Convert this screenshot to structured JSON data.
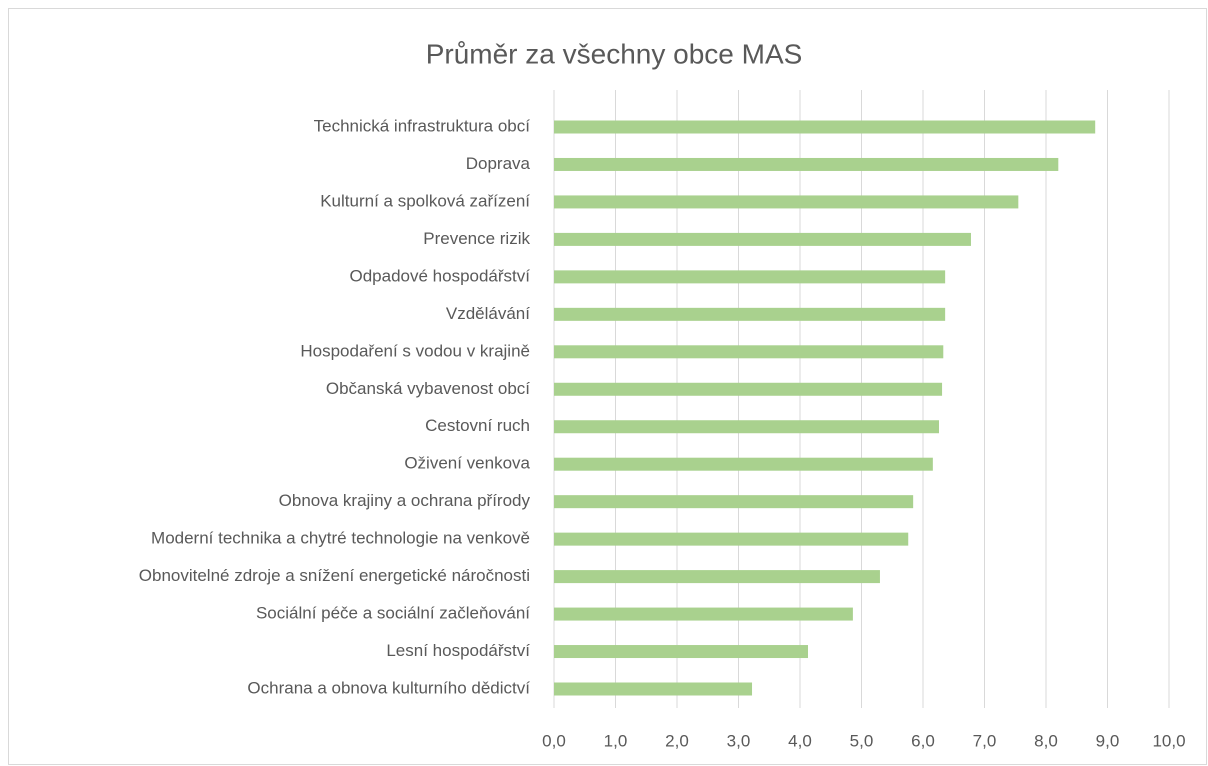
{
  "chart_data": {
    "type": "bar",
    "orientation": "horizontal",
    "title": "Průměr za všechny obce MAS",
    "categories": [
      "Technická infrastruktura obcí",
      "Doprava",
      "Kulturní a spolková zařízení",
      "Prevence rizik",
      "Odpadové hospodářství",
      "Vzdělávání",
      "Hospodaření s vodou v krajině",
      "Občanská vybavenost obcí",
      "Cestovní ruch",
      "Oživení venkova",
      "Obnova krajiny a ochrana přírody",
      "Moderní technika a chytré technologie na venkově",
      "Obnovitelné zdroje a snížení energetické náročnosti",
      "Sociální péče a sociální začleňování",
      "Lesní hospodářství",
      "Ochrana a obnova kulturního dědictví"
    ],
    "values": [
      8.8,
      8.2,
      7.55,
      6.78,
      6.36,
      6.36,
      6.33,
      6.31,
      6.26,
      6.16,
      5.84,
      5.76,
      5.3,
      4.86,
      4.13,
      3.22
    ],
    "color": "#a9d18e",
    "xlim": [
      0,
      10
    ],
    "xticks": [
      {
        "value": 0,
        "label": "0,0"
      },
      {
        "value": 1,
        "label": "1,0"
      },
      {
        "value": 2,
        "label": "2,0"
      },
      {
        "value": 3,
        "label": "3,0"
      },
      {
        "value": 4,
        "label": "4,0"
      },
      {
        "value": 5,
        "label": "5,0"
      },
      {
        "value": 6,
        "label": "6,0"
      },
      {
        "value": 7,
        "label": "7,0"
      },
      {
        "value": 8,
        "label": "8,0"
      },
      {
        "value": 9,
        "label": "9,0"
      },
      {
        "value": 10,
        "label": "10,0"
      }
    ],
    "grid": true
  }
}
